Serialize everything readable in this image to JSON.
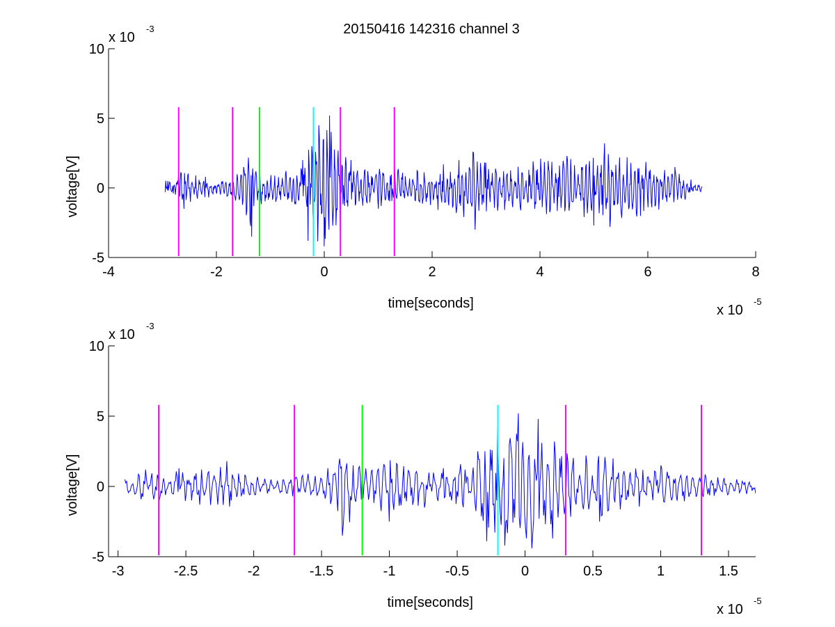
{
  "title": "20150416 142316 channel 3",
  "chart_data": [
    {
      "type": "line",
      "title": "20150416 142316 channel 3",
      "xlabel": "time[seconds]",
      "ylabel": "voltage[V]",
      "x_multiplier": {
        "base": "x 10",
        "exp": "-5"
      },
      "y_multiplier": {
        "base": "x 10",
        "exp": "-3"
      },
      "xlim": [
        -4e-05,
        8e-05
      ],
      "ylim": [
        -0.005,
        0.01
      ],
      "x_ticks": [
        -4e-05,
        -2e-05,
        0,
        2e-05,
        4e-05,
        6e-05,
        8e-05
      ],
      "x_tick_labels": [
        "-4",
        "-2",
        "0",
        "2",
        "4",
        "6",
        "8"
      ],
      "y_ticks": [
        -0.005,
        0,
        0.005,
        0.01
      ],
      "y_tick_labels": [
        "-5",
        "0",
        "5",
        "10"
      ],
      "grid": false,
      "series": [
        {
          "color": "#0000ff",
          "x_start": -2.95e-05,
          "x_end": 7e-05,
          "samples": 1000,
          "points": [
            [
              -2.9e-05,
              0.0005
            ],
            [
              -2.8e-05,
              -0.0004
            ],
            [
              -2.7e-05,
              0.0012
            ],
            [
              -2.6e-05,
              -0.0015
            ],
            [
              -2.2e-05,
              0.0008
            ],
            [
              -1.8e-05,
              -0.0006
            ],
            [
              -1.5e-05,
              0.0015
            ],
            [
              -1.35e-05,
              -0.0035
            ],
            [
              -1.2e-05,
              0.0015
            ],
            [
              -9e-06,
              -0.001
            ],
            [
              -4e-06,
              0.002
            ],
            [
              -3e-06,
              -0.0038
            ],
            [
              -1e-06,
              0.0045
            ],
            [
              0.0,
              -0.0042
            ],
            [
              1e-06,
              0.0052
            ],
            [
              3e-06,
              -0.0035
            ],
            [
              5e-06,
              0.002
            ],
            [
              1e-05,
              -0.0015
            ],
            [
              1.3e-05,
              0.0015
            ],
            [
              2.5e-05,
              0.002
            ],
            [
              2.8e-05,
              -0.003
            ],
            [
              3e-05,
              0.0018
            ],
            [
              5e-05,
              -0.0027
            ],
            [
              5.2e-05,
              0.0032
            ],
            [
              5.3e-05,
              -0.0028
            ],
            [
              6.5e-05,
              0.0015
            ],
            [
              7e-05,
              0.0001
            ]
          ]
        }
      ],
      "markers": [
        {
          "x": -2.7e-05,
          "color": "#ff00ff",
          "y_range": [
            -0.005,
            0.0058
          ]
        },
        {
          "x": -1.7e-05,
          "color": "#ff00ff",
          "y_range": [
            -0.005,
            0.0058
          ]
        },
        {
          "x": -1.2e-05,
          "color": "#00ff00",
          "y_range": [
            -0.005,
            0.0058
          ]
        },
        {
          "x": -2e-06,
          "color": "#00ffff",
          "y_range": [
            -0.005,
            0.0058
          ]
        },
        {
          "x": 3e-06,
          "color": "#ff00ff",
          "y_range": [
            -0.005,
            0.0058
          ]
        },
        {
          "x": 1.3e-05,
          "color": "#ff00ff",
          "y_range": [
            -0.005,
            0.0058
          ]
        }
      ]
    },
    {
      "type": "line",
      "title": "",
      "xlabel": "time[seconds]",
      "ylabel": "voltage[V]",
      "x_multiplier": {
        "base": "x 10",
        "exp": "-5"
      },
      "y_multiplier": {
        "base": "x 10",
        "exp": "-3"
      },
      "xlim": [
        -3.07e-05,
        1.7e-05
      ],
      "ylim": [
        -0.005,
        0.01
      ],
      "x_ticks": [
        -3e-05,
        -2.5e-05,
        -2e-05,
        -1.5e-05,
        -1e-05,
        -5e-06,
        0,
        5e-06,
        1e-05,
        1.5e-05
      ],
      "x_tick_labels": [
        "-3",
        "-2.5",
        "-2",
        "-1.5",
        "-1",
        "-0.5",
        "0",
        "0.5",
        "1",
        "1.5"
      ],
      "y_ticks": [
        -0.005,
        0,
        0.005,
        0.01
      ],
      "y_tick_labels": [
        "-5",
        "0",
        "5",
        "10"
      ],
      "grid": false,
      "series": [
        {
          "color": "#0000ff",
          "x_start": -2.95e-05,
          "x_end": 1.7e-05,
          "samples": 700,
          "points": [
            [
              -2.95e-05,
              0.0005
            ],
            [
              -2.8e-05,
              0.0012
            ],
            [
              -2.7e-05,
              -0.001
            ],
            [
              -2.55e-05,
              0.0013
            ],
            [
              -2.4e-05,
              -0.0013
            ],
            [
              -2.2e-05,
              0.0018
            ],
            [
              -1.9e-05,
              -0.0005
            ],
            [
              -1.6e-05,
              0.0009
            ],
            [
              -1.45e-05,
              0.0013
            ],
            [
              -1.35e-05,
              -0.0035
            ],
            [
              -1.2e-05,
              0.0014
            ],
            [
              -1e-05,
              -0.0025
            ],
            [
              -6e-06,
              0.0013
            ],
            [
              -3.5e-06,
              0.0025
            ],
            [
              -2.8e-06,
              -0.0039
            ],
            [
              -2e-06,
              0.0042
            ],
            [
              -1.5e-06,
              -0.0042
            ],
            [
              -5e-07,
              0.0052
            ],
            [
              5e-07,
              -0.0044
            ],
            [
              1e-06,
              0.0048
            ],
            [
              2e-06,
              -0.0037
            ],
            [
              4.5e-06,
              0.0022
            ],
            [
              5.5e-06,
              -0.0025
            ],
            [
              6.5e-06,
              0.002
            ],
            [
              1e-05,
              0.0015
            ],
            [
              1.3e-05,
              0.001
            ],
            [
              1.7e-05,
              -0.0005
            ]
          ]
        }
      ],
      "markers": [
        {
          "x": -2.7e-05,
          "color": "#ff00ff",
          "y_range": [
            -0.005,
            0.0058
          ]
        },
        {
          "x": -1.7e-05,
          "color": "#ff00ff",
          "y_range": [
            -0.005,
            0.0058
          ]
        },
        {
          "x": -1.2e-05,
          "color": "#00ff00",
          "y_range": [
            -0.005,
            0.0058
          ]
        },
        {
          "x": -2e-06,
          "color": "#00ffff",
          "y_range": [
            -0.005,
            0.0058
          ]
        },
        {
          "x": 3e-06,
          "color": "#ff00ff",
          "y_range": [
            -0.005,
            0.0058
          ]
        },
        {
          "x": 1.3e-05,
          "color": "#ff00ff",
          "y_range": [
            -0.005,
            0.0058
          ]
        }
      ]
    }
  ]
}
